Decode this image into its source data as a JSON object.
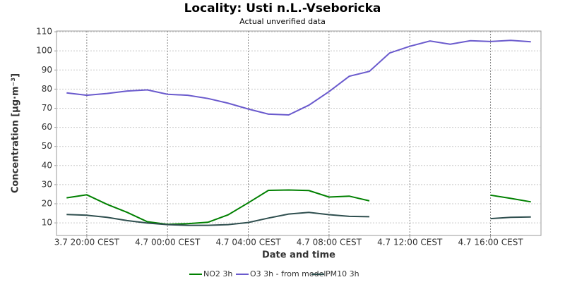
{
  "chart_data": {
    "type": "line",
    "title": "Locality: Usti n.L.-Vseboricka",
    "subtitle": "Actual unverified data",
    "x_label": "Date and time",
    "y_label": "Concentration [µg·m⁻³]",
    "categories": [
      null,
      "3.7 20:00 CEST",
      null,
      null,
      null,
      "4.7 00:00 CEST",
      null,
      null,
      null,
      "4.7 04:00 CEST",
      null,
      null,
      null,
      "4.7 08:00 CEST",
      null,
      null,
      null,
      "4.7 12:00 CEST",
      null,
      null,
      null,
      "4.7 16:00 CEST",
      null,
      null
    ],
    "series": [
      {
        "name": "NO2 3h",
        "color": "#008000",
        "values": [
          23.1,
          24.7,
          19.7,
          15.5,
          10.6,
          9.2,
          9.6,
          10.3,
          14.2,
          20.5,
          27.0,
          27.2,
          26.9,
          23.5,
          24.0,
          21.5,
          null,
          null,
          null,
          null,
          null,
          24.5,
          22.8,
          21.0
        ]
      },
      {
        "name": "O3 3h - from model",
        "color": "#6a5acd",
        "values": [
          78.0,
          76.8,
          77.7,
          79.0,
          79.6,
          77.3,
          76.8,
          75.1,
          72.6,
          69.6,
          66.9,
          66.5,
          71.6,
          78.7,
          86.7,
          89.3,
          98.9,
          102.4,
          105.2,
          103.5,
          105.3,
          104.9,
          105.5,
          104.8
        ]
      },
      {
        "name": "PM10 3h",
        "color": "#2f4f4f",
        "values": [
          14.4,
          14.0,
          12.9,
          11.2,
          9.9,
          9.1,
          8.7,
          8.7,
          9.1,
          10.2,
          12.5,
          14.6,
          15.5,
          14.3,
          13.4,
          13.2,
          null,
          null,
          null,
          null,
          null,
          12.2,
          12.9,
          13.1
        ]
      }
    ],
    "ylim": [
      3.4,
      110.4
    ],
    "yticks": [
      10,
      20,
      30,
      40,
      50,
      60,
      70,
      80,
      90,
      100,
      110
    ],
    "grid": true,
    "legend": "bottom"
  }
}
